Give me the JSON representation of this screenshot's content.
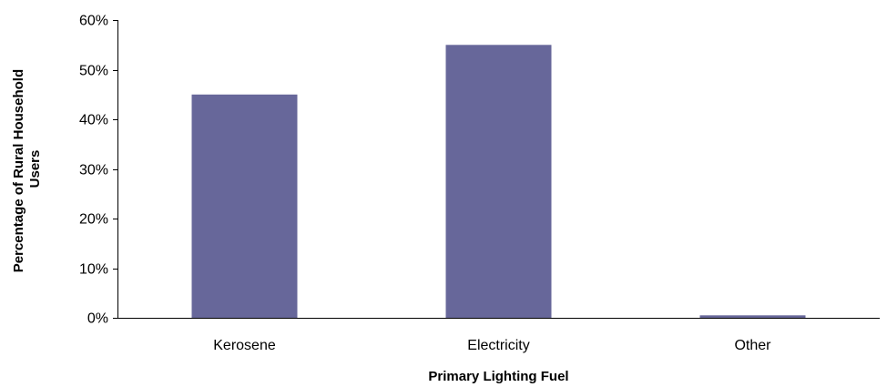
{
  "chart_data": {
    "type": "bar",
    "title": "",
    "xlabel": "Primary Lighting Fuel",
    "ylabel": "Percentage of Rural Household Users",
    "ylabel_lines": [
      "Percentage of Rural Household",
      "Users"
    ],
    "categories": [
      "Kerosene",
      "Electricity",
      "Other"
    ],
    "values": [
      45,
      55,
      0.5
    ],
    "ylim": [
      0,
      60
    ],
    "yticks": [
      0,
      10,
      20,
      30,
      40,
      50,
      60
    ],
    "ytick_labels": [
      "0%",
      "10%",
      "20%",
      "30%",
      "40%",
      "50%",
      "60%"
    ],
    "grid": false,
    "legend": "none",
    "bar_color": "#67679A"
  }
}
